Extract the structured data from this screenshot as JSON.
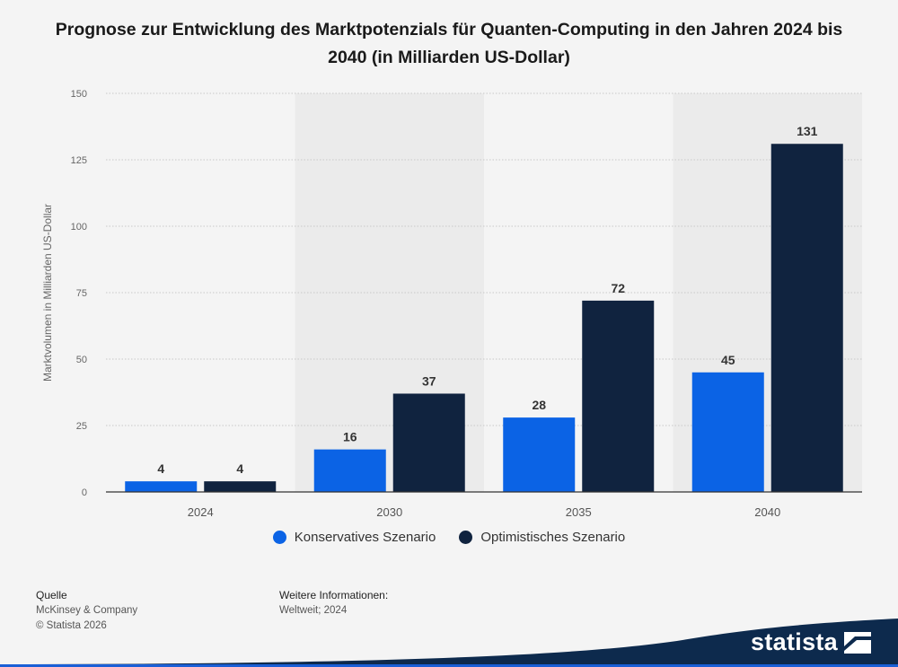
{
  "title": "Prognose zur Entwicklung des Marktpotenzials für Quanten-Computing in den Jahren 2024 bis 2040 (in Milliarden US-Dollar)",
  "colors": {
    "konservativ": "#0b63e5",
    "optimistisch": "#10233f",
    "background": "#f4f4f4",
    "band": "#ebebeb",
    "brand": "#0d2a4d"
  },
  "chart_data": {
    "type": "bar",
    "title": "Prognose zur Entwicklung des Marktpotenzials für Quanten-Computing in den Jahren 2024 bis 2040 (in Milliarden US-Dollar)",
    "xlabel": "",
    "ylabel": "Marktvolumen in Milliarden US-Dollar",
    "categories": [
      "2024",
      "2030",
      "2035",
      "2040"
    ],
    "series": [
      {
        "name": "Konservatives Szenario",
        "values": [
          4,
          16,
          28,
          45
        ]
      },
      {
        "name": "Optimistisches Szenario",
        "values": [
          4,
          37,
          72,
          131
        ]
      }
    ],
    "ylim": [
      0,
      150
    ],
    "yticks": [
      0,
      25,
      50,
      75,
      100,
      125,
      150
    ],
    "grid": true,
    "legend_position": "bottom-center",
    "data_labels": true
  },
  "footer": {
    "source_heading": "Quelle",
    "source_name": "McKinsey & Company",
    "copyright": "© Statista 2026",
    "info_heading": "Weitere Informationen:",
    "info_text": "Weltweit; 2024"
  },
  "brand": {
    "logo_text": "statista",
    "logo_icon": "statista-logo-icon"
  }
}
